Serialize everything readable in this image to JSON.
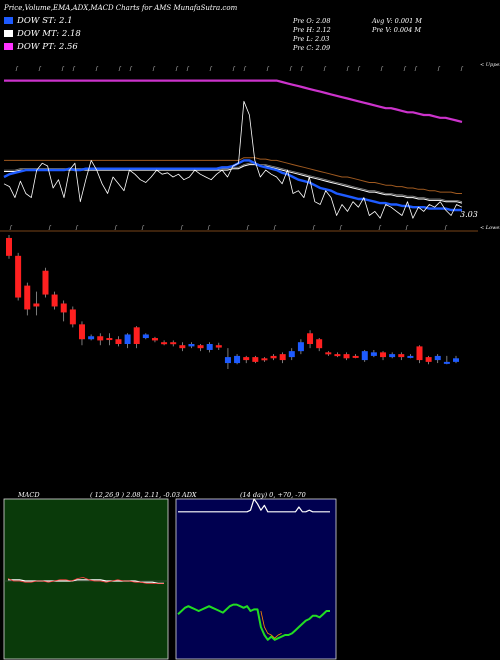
{
  "header": {
    "title": "Price,Volume,EMA,ADX,MACD Charts for AMS MunafaSutra.com",
    "pre_o": "Pre  O: 2.08",
    "pre_h": "Pre  H: 2.12",
    "pre_l": "Pre  L: 2.03",
    "pre_c": "Pre  C: 2.09",
    "avg_v": "Avg V: 0.001 M",
    "pre_v": "Pre  V: 0.004  M"
  },
  "legend": [
    {
      "label": "DOW ST: 2.1",
      "color": "#1e5bff"
    },
    {
      "label": "DOW MT: 2.18",
      "color": "#ffffff"
    },
    {
      "label": "DOW PT: 2.56",
      "color": "#ff33ff"
    }
  ],
  "labels": {
    "upper": "< Upper",
    "lower": "< Lower",
    "last_price": "3.03"
  },
  "colors": {
    "bg": "#000000",
    "pt": "#cc33cc",
    "mt": "#ffffff",
    "st": "#1e5bff",
    "orange": "#a05a20",
    "up": "#1e5bff",
    "down": "#ff2020",
    "macd_bg": "#0a3a0a",
    "adx_bg": "#000050",
    "adx_line": "#22dd22",
    "adx_white": "#ffffff",
    "adx_orange": "#ff8800"
  },
  "chart_data": {
    "type": "candlestick",
    "title": "Price,Volume,EMA,ADX,MACD Charts for AMS MunafaSutra.com",
    "price_series": {
      "close": [
        2.95,
        2.93,
        2.85,
        2.97,
        2.88,
        2.85,
        3.05,
        3.1,
        3.08,
        2.92,
        2.98,
        2.85,
        3.05,
        3.1,
        2.82,
        2.98,
        3.12,
        3.05,
        2.95,
        2.88,
        3.0,
        2.95,
        2.9,
        3.05,
        3.02,
        2.98,
        2.96,
        3.0,
        3.05,
        3.02,
        3.03,
        3.0,
        3.02,
        2.98,
        3.0,
        3.05,
        3.02,
        3.0,
        2.98,
        3.02,
        3.05,
        3.0,
        3.08,
        3.1,
        3.55,
        3.45,
        3.12,
        3.0,
        3.05,
        3.02,
        3.0,
        2.95,
        3.05,
        2.88,
        2.9,
        2.85,
        3.0,
        2.82,
        2.8,
        2.9,
        2.85,
        2.72,
        2.8,
        2.75,
        2.82,
        2.78,
        2.85,
        2.72,
        2.75,
        2.7,
        2.8,
        2.78,
        2.75,
        2.72,
        2.82,
        2.7,
        2.78,
        2.75,
        2.8,
        2.78,
        2.82,
        2.76,
        2.72,
        2.8,
        2.78
      ],
      "dow_st": [
        3.0,
        3.02,
        3.03,
        3.04,
        3.05,
        3.05,
        3.05,
        3.05,
        3.05,
        3.05,
        3.05,
        3.05,
        3.06,
        3.05,
        3.05,
        3.06,
        3.06,
        3.06,
        3.06,
        3.06,
        3.06,
        3.06,
        3.06,
        3.06,
        3.06,
        3.06,
        3.06,
        3.06,
        3.06,
        3.06,
        3.06,
        3.06,
        3.06,
        3.06,
        3.06,
        3.06,
        3.06,
        3.06,
        3.06,
        3.06,
        3.07,
        3.07,
        3.08,
        3.1,
        3.12,
        3.12,
        3.1,
        3.08,
        3.07,
        3.06,
        3.05,
        3.03,
        3.02,
        3.0,
        2.98,
        2.97,
        2.96,
        2.94,
        2.92,
        2.91,
        2.9,
        2.88,
        2.87,
        2.86,
        2.85,
        2.84,
        2.84,
        2.83,
        2.82,
        2.81,
        2.81,
        2.8,
        2.8,
        2.79,
        2.79,
        2.78,
        2.78,
        2.78,
        2.77,
        2.77,
        2.77,
        2.77,
        2.76,
        2.76,
        2.76
      ],
      "dow_mt": [
        3.04,
        3.04,
        3.04,
        3.05,
        3.05,
        3.05,
        3.05,
        3.05,
        3.05,
        3.05,
        3.05,
        3.05,
        3.05,
        3.05,
        3.05,
        3.05,
        3.05,
        3.05,
        3.05,
        3.05,
        3.05,
        3.05,
        3.05,
        3.05,
        3.05,
        3.05,
        3.05,
        3.05,
        3.05,
        3.05,
        3.05,
        3.05,
        3.05,
        3.05,
        3.05,
        3.05,
        3.05,
        3.05,
        3.05,
        3.05,
        3.05,
        3.05,
        3.06,
        3.06,
        3.08,
        3.09,
        3.09,
        3.08,
        3.08,
        3.07,
        3.06,
        3.05,
        3.04,
        3.03,
        3.02,
        3.01,
        3.0,
        2.99,
        2.98,
        2.97,
        2.96,
        2.95,
        2.94,
        2.93,
        2.92,
        2.91,
        2.9,
        2.89,
        2.89,
        2.88,
        2.87,
        2.87,
        2.86,
        2.86,
        2.85,
        2.85,
        2.84,
        2.84,
        2.83,
        2.83,
        2.83,
        2.82,
        2.82,
        2.82,
        2.81
      ],
      "dow_pt": [
        3.7,
        3.7,
        3.7,
        3.7,
        3.7,
        3.7,
        3.7,
        3.7,
        3.7,
        3.7,
        3.7,
        3.7,
        3.7,
        3.7,
        3.7,
        3.7,
        3.7,
        3.7,
        3.7,
        3.7,
        3.7,
        3.7,
        3.7,
        3.7,
        3.7,
        3.7,
        3.7,
        3.7,
        3.7,
        3.7,
        3.7,
        3.7,
        3.7,
        3.7,
        3.7,
        3.7,
        3.7,
        3.7,
        3.7,
        3.7,
        3.7,
        3.7,
        3.7,
        3.7,
        3.7,
        3.7,
        3.7,
        3.7,
        3.7,
        3.7,
        3.7,
        3.69,
        3.68,
        3.67,
        3.66,
        3.65,
        3.64,
        3.63,
        3.62,
        3.61,
        3.6,
        3.59,
        3.58,
        3.57,
        3.56,
        3.55,
        3.54,
        3.53,
        3.52,
        3.51,
        3.5,
        3.5,
        3.49,
        3.48,
        3.47,
        3.47,
        3.46,
        3.45,
        3.45,
        3.44,
        3.43,
        3.43,
        3.42,
        3.41,
        3.4
      ],
      "ema_orange": [
        3.12,
        3.12,
        3.12,
        3.12,
        3.12,
        3.12,
        3.12,
        3.12,
        3.12,
        3.12,
        3.12,
        3.12,
        3.12,
        3.12,
        3.12,
        3.12,
        3.12,
        3.12,
        3.12,
        3.12,
        3.12,
        3.12,
        3.12,
        3.12,
        3.12,
        3.12,
        3.12,
        3.12,
        3.12,
        3.12,
        3.12,
        3.12,
        3.12,
        3.12,
        3.12,
        3.12,
        3.12,
        3.12,
        3.12,
        3.12,
        3.12,
        3.12,
        3.12,
        3.12,
        3.14,
        3.14,
        3.14,
        3.13,
        3.13,
        3.12,
        3.12,
        3.11,
        3.1,
        3.09,
        3.08,
        3.07,
        3.06,
        3.05,
        3.04,
        3.03,
        3.02,
        3.01,
        3.0,
        3.0,
        2.99,
        2.98,
        2.97,
        2.96,
        2.96,
        2.95,
        2.94,
        2.94,
        2.93,
        2.93,
        2.92,
        2.92,
        2.91,
        2.91,
        2.9,
        2.9,
        2.89,
        2.89,
        2.89,
        2.88,
        2.88
      ],
      "x_range": [
        4,
        462
      ],
      "y_range": [
        2.6,
        3.85
      ]
    },
    "candles": [
      {
        "o": 4.4,
        "c": 4.1,
        "h": 4.45,
        "l": 4.05
      },
      {
        "o": 4.1,
        "c": 3.4,
        "h": 4.15,
        "l": 3.35
      },
      {
        "o": 3.6,
        "c": 3.2,
        "h": 3.65,
        "l": 3.1
      },
      {
        "o": 3.3,
        "c": 3.25,
        "h": 3.5,
        "l": 3.1
      },
      {
        "o": 3.85,
        "c": 3.45,
        "h": 3.9,
        "l": 3.4
      },
      {
        "o": 3.45,
        "c": 3.25,
        "h": 3.5,
        "l": 3.2
      },
      {
        "o": 3.3,
        "c": 3.15,
        "h": 3.35,
        "l": 3.0
      },
      {
        "o": 3.2,
        "c": 2.95,
        "h": 3.25,
        "l": 2.9
      },
      {
        "o": 2.95,
        "c": 2.7,
        "h": 3.0,
        "l": 2.6
      },
      {
        "o": 2.7,
        "c": 2.75,
        "h": 2.78,
        "l": 2.68
      },
      {
        "o": 2.75,
        "c": 2.68,
        "h": 2.8,
        "l": 2.6
      },
      {
        "o": 2.72,
        "c": 2.7,
        "h": 2.8,
        "l": 2.6
      },
      {
        "o": 2.7,
        "c": 2.62,
        "h": 2.75,
        "l": 2.58
      },
      {
        "o": 2.62,
        "c": 2.78,
        "h": 2.8,
        "l": 2.55
      },
      {
        "o": 2.9,
        "c": 2.62,
        "h": 2.92,
        "l": 2.55
      },
      {
        "o": 2.72,
        "c": 2.78,
        "h": 2.8,
        "l": 2.7
      },
      {
        "o": 2.72,
        "c": 2.68,
        "h": 2.74,
        "l": 2.65
      },
      {
        "o": 2.65,
        "c": 2.62,
        "h": 2.68,
        "l": 2.6
      },
      {
        "o": 2.65,
        "c": 2.62,
        "h": 2.68,
        "l": 2.58
      },
      {
        "o": 2.6,
        "c": 2.55,
        "h": 2.65,
        "l": 2.5
      },
      {
        "o": 2.58,
        "c": 2.62,
        "h": 2.65,
        "l": 2.55
      },
      {
        "o": 2.6,
        "c": 2.55,
        "h": 2.62,
        "l": 2.5
      },
      {
        "o": 2.52,
        "c": 2.62,
        "h": 2.65,
        "l": 2.48
      },
      {
        "o": 2.6,
        "c": 2.56,
        "h": 2.64,
        "l": 2.52
      },
      {
        "o": 2.3,
        "c": 2.4,
        "h": 2.55,
        "l": 2.2
      },
      {
        "o": 2.3,
        "c": 2.42,
        "h": 2.45,
        "l": 2.28
      },
      {
        "o": 2.4,
        "c": 2.35,
        "h": 2.42,
        "l": 2.3
      },
      {
        "o": 2.4,
        "c": 2.32,
        "h": 2.42,
        "l": 2.3
      },
      {
        "o": 2.38,
        "c": 2.35,
        "h": 2.4,
        "l": 2.32
      },
      {
        "o": 2.42,
        "c": 2.38,
        "h": 2.45,
        "l": 2.35
      },
      {
        "o": 2.45,
        "c": 2.35,
        "h": 2.48,
        "l": 2.3
      },
      {
        "o": 2.4,
        "c": 2.5,
        "h": 2.55,
        "l": 2.35
      },
      {
        "o": 2.5,
        "c": 2.65,
        "h": 2.7,
        "l": 2.45
      },
      {
        "o": 2.8,
        "c": 2.62,
        "h": 2.85,
        "l": 2.55
      },
      {
        "o": 2.7,
        "c": 2.55,
        "h": 2.72,
        "l": 2.5
      },
      {
        "o": 2.48,
        "c": 2.45,
        "h": 2.5,
        "l": 2.42
      },
      {
        "o": 2.45,
        "c": 2.42,
        "h": 2.48,
        "l": 2.4
      },
      {
        "o": 2.45,
        "c": 2.38,
        "h": 2.48,
        "l": 2.35
      },
      {
        "o": 2.42,
        "c": 2.4,
        "h": 2.45,
        "l": 2.38
      },
      {
        "o": 2.35,
        "c": 2.5,
        "h": 2.52,
        "l": 2.32
      },
      {
        "o": 2.42,
        "c": 2.48,
        "h": 2.52,
        "l": 2.4
      },
      {
        "o": 2.48,
        "c": 2.4,
        "h": 2.5,
        "l": 2.35
      },
      {
        "o": 2.4,
        "c": 2.45,
        "h": 2.48,
        "l": 2.38
      },
      {
        "o": 2.45,
        "c": 2.4,
        "h": 2.48,
        "l": 2.35
      },
      {
        "o": 2.4,
        "c": 2.42,
        "h": 2.45,
        "l": 2.38
      },
      {
        "o": 2.58,
        "c": 2.35,
        "h": 2.6,
        "l": 2.3
      },
      {
        "o": 2.4,
        "c": 2.32,
        "h": 2.42,
        "l": 2.28
      },
      {
        "o": 2.35,
        "c": 2.42,
        "h": 2.45,
        "l": 2.3
      },
      {
        "o": 2.3,
        "c": 2.32,
        "h": 2.42,
        "l": 2.28
      },
      {
        "o": 2.32,
        "c": 2.38,
        "h": 2.42,
        "l": 2.3
      }
    ],
    "macd": {
      "label": "MACD",
      "params": "( 12,26,9 ) 2.08, 2.11, -0.03",
      "macd_line": [
        0.02,
        0.0,
        0.0,
        -0.01,
        -0.01,
        0.0,
        0.0,
        -0.01,
        0.0,
        0.01,
        0.01,
        0.0,
        0.02,
        0.03,
        0.01,
        0.0,
        0.0,
        -0.01,
        0.0,
        0.01,
        0.0,
        0.0,
        -0.01,
        -0.01,
        -0.02,
        -0.02,
        -0.02,
        -0.02
      ],
      "signal_line": [
        0.01,
        0.01,
        0.01,
        0.0,
        0.0,
        0.0,
        0.0,
        0.0,
        0.0,
        0.0,
        0.0,
        0.0,
        0.01,
        0.01,
        0.01,
        0.01,
        0.01,
        0.0,
        0.0,
        0.0,
        0.0,
        0.0,
        0.0,
        -0.01,
        -0.01,
        -0.01,
        -0.02,
        -0.02
      ]
    },
    "adx": {
      "label": "ADX",
      "params": "(14  day) 0, +70, -70",
      "adx_line": [
        28,
        30,
        32,
        33,
        32,
        31,
        30,
        31,
        32,
        33,
        32,
        31,
        30,
        29,
        31,
        33,
        34,
        34,
        33,
        32,
        33,
        30,
        31,
        31,
        20,
        15,
        12,
        14,
        12,
        13,
        14,
        15,
        15,
        16,
        18,
        20,
        22,
        24,
        25,
        27,
        27,
        26,
        28,
        30,
        30
      ],
      "white_line": [
        92,
        92,
        92,
        92,
        92,
        92,
        92,
        92,
        92,
        92,
        92,
        92,
        92,
        92,
        92,
        92,
        92,
        92,
        92,
        92,
        92,
        93,
        100,
        97,
        93,
        96,
        92,
        92,
        92,
        92,
        92,
        92,
        92,
        92,
        92,
        95,
        92,
        92,
        93,
        92,
        92,
        92,
        92,
        92,
        92
      ],
      "orange_line": [
        null,
        null,
        null,
        null,
        null,
        null,
        null,
        null,
        null,
        null,
        null,
        null,
        null,
        null,
        null,
        null,
        null,
        null,
        null,
        null,
        null,
        null,
        null,
        null,
        30,
        20,
        16,
        15,
        13,
        15,
        16,
        null,
        null,
        null,
        null,
        null,
        null,
        null,
        null,
        null,
        null,
        null,
        null,
        null,
        null
      ]
    }
  }
}
